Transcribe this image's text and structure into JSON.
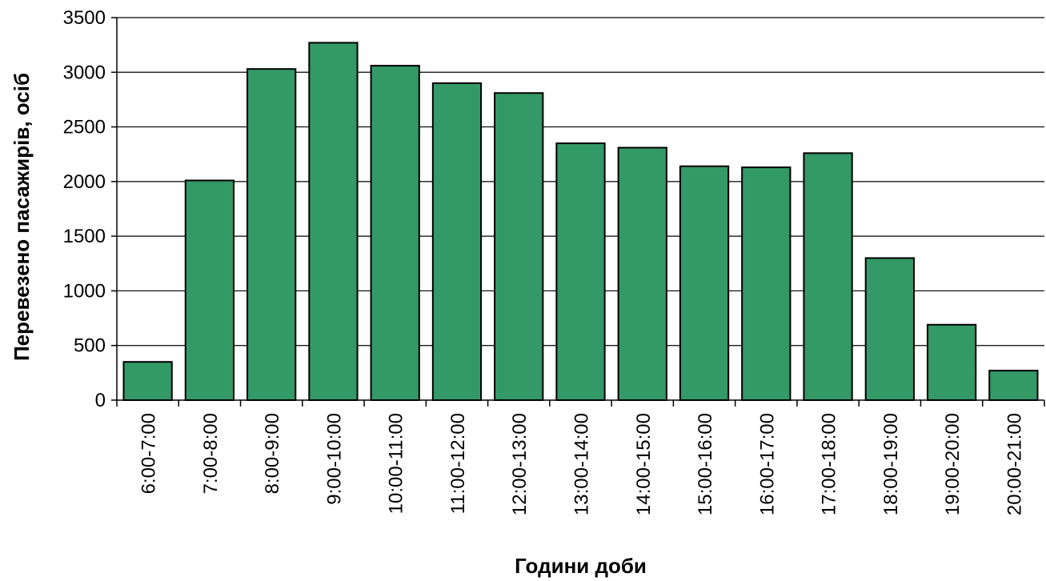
{
  "chart_data": {
    "type": "bar",
    "categories": [
      "6:00-7:00",
      "7:00-8:00",
      "8:00-9:00",
      "9:00-10:00",
      "10:00-11:00",
      "11:00-12:00",
      "12:00-13:00",
      "13:00-14:00",
      "14:00-15:00",
      "15:00-16:00",
      "16:00-17:00",
      "17:00-18:00",
      "18:00-19:00",
      "19:00-20:00",
      "20:00-21:00"
    ],
    "values": [
      350,
      2010,
      3030,
      3270,
      3060,
      2900,
      2810,
      2350,
      2310,
      2140,
      2130,
      2260,
      1300,
      690,
      270
    ],
    "xlabel": "Години доби",
    "ylabel": "Перевезено пасажирів, осіб",
    "ylim": [
      0,
      3500
    ],
    "yticks": [
      0,
      500,
      1000,
      1500,
      2000,
      2500,
      3000,
      3500
    ],
    "grid": true,
    "bar_color": "#339966"
  }
}
